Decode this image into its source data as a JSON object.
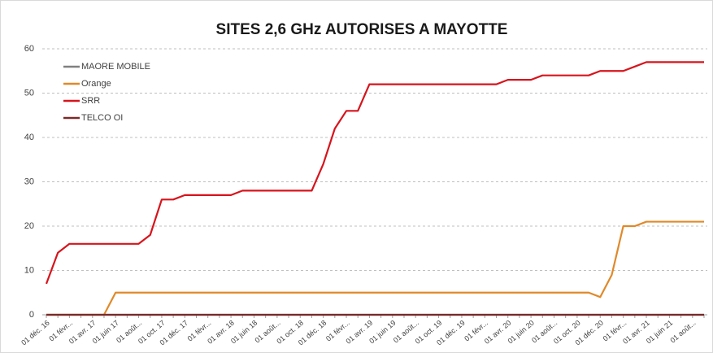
{
  "chart_data": {
    "type": "line",
    "title": "SITES 2,6 GHz AUTORISES A MAYOTTE",
    "categories": [
      "01 déc. 16",
      null,
      "01 févr...",
      null,
      "01 avr. 17",
      null,
      "01 juin 17",
      null,
      "01 août...",
      null,
      "01 oct. 17",
      null,
      "01 déc. 17",
      null,
      "01 févr...",
      null,
      "01 avr. 18",
      null,
      "01 juin 18",
      null,
      "01 août...",
      null,
      "01 oct. 18",
      null,
      "01 déc. 18",
      null,
      "01 févr...",
      null,
      "01 avr. 19",
      null,
      "01 juin 19",
      null,
      "01 août...",
      null,
      "01 oct. 19",
      null,
      "01 déc. 19",
      null,
      "01 févr...",
      null,
      "01 avr. 20",
      null,
      "01 juin 20",
      null,
      "01 août...",
      null,
      "01 oct. 20",
      null,
      "01 déc. 20",
      null,
      "01 févr...",
      null,
      "01 avr. 21",
      null,
      "01 juin 21",
      null,
      "01 août...",
      null
    ],
    "series": [
      {
        "name": "MAORE MOBILE",
        "color": "#808080",
        "values": [
          0,
          0,
          0,
          0,
          0,
          0,
          0,
          0,
          0,
          0,
          0,
          0,
          0,
          0,
          0,
          0,
          0,
          0,
          0,
          0,
          0,
          0,
          0,
          0,
          0,
          0,
          0,
          0,
          0,
          0,
          0,
          0,
          0,
          0,
          0,
          0,
          0,
          0,
          0,
          0,
          0,
          0,
          0,
          0,
          0,
          0,
          0,
          0,
          0,
          0,
          0,
          0,
          0,
          0,
          0,
          0,
          0,
          0
        ]
      },
      {
        "name": "Orange",
        "color": "#e0892a",
        "values": [
          0,
          0,
          0,
          0,
          0,
          0,
          5,
          5,
          5,
          5,
          5,
          5,
          5,
          5,
          5,
          5,
          5,
          5,
          5,
          5,
          5,
          5,
          5,
          5,
          5,
          5,
          5,
          5,
          5,
          5,
          5,
          5,
          5,
          5,
          5,
          5,
          5,
          5,
          5,
          5,
          5,
          5,
          5,
          5,
          5,
          5,
          5,
          5,
          4,
          9,
          20,
          20,
          21,
          21,
          21,
          21,
          21,
          21
        ]
      },
      {
        "name": "SRR",
        "color": "#d7141c",
        "values": [
          7,
          14,
          16,
          16,
          16,
          16,
          16,
          16,
          16,
          18,
          26,
          26,
          27,
          27,
          27,
          27,
          27,
          28,
          28,
          28,
          28,
          28,
          28,
          28,
          34,
          42,
          46,
          46,
          52,
          52,
          52,
          52,
          52,
          52,
          52,
          52,
          52,
          52,
          52,
          52,
          53,
          53,
          53,
          54,
          54,
          54,
          54,
          54,
          55,
          55,
          55,
          56,
          57,
          57,
          57,
          57,
          57,
          57
        ]
      },
      {
        "name": "TELCO OI",
        "color": "#7a2a2a",
        "values": [
          0,
          0,
          0,
          0,
          0,
          0,
          0,
          0,
          0,
          0,
          0,
          0,
          0,
          0,
          0,
          0,
          0,
          0,
          0,
          0,
          0,
          0,
          0,
          0,
          0,
          0,
          0,
          0,
          0,
          0,
          0,
          0,
          0,
          0,
          0,
          0,
          0,
          0,
          0,
          0,
          0,
          0,
          0,
          0,
          0,
          0,
          0,
          0,
          0,
          0,
          0,
          0,
          0,
          0,
          0,
          0,
          0,
          0
        ]
      }
    ],
    "ylim": [
      0,
      60
    ],
    "yticks": [
      0,
      10,
      20,
      30,
      40,
      50,
      60
    ],
    "grid": true,
    "legend": "top-left"
  }
}
